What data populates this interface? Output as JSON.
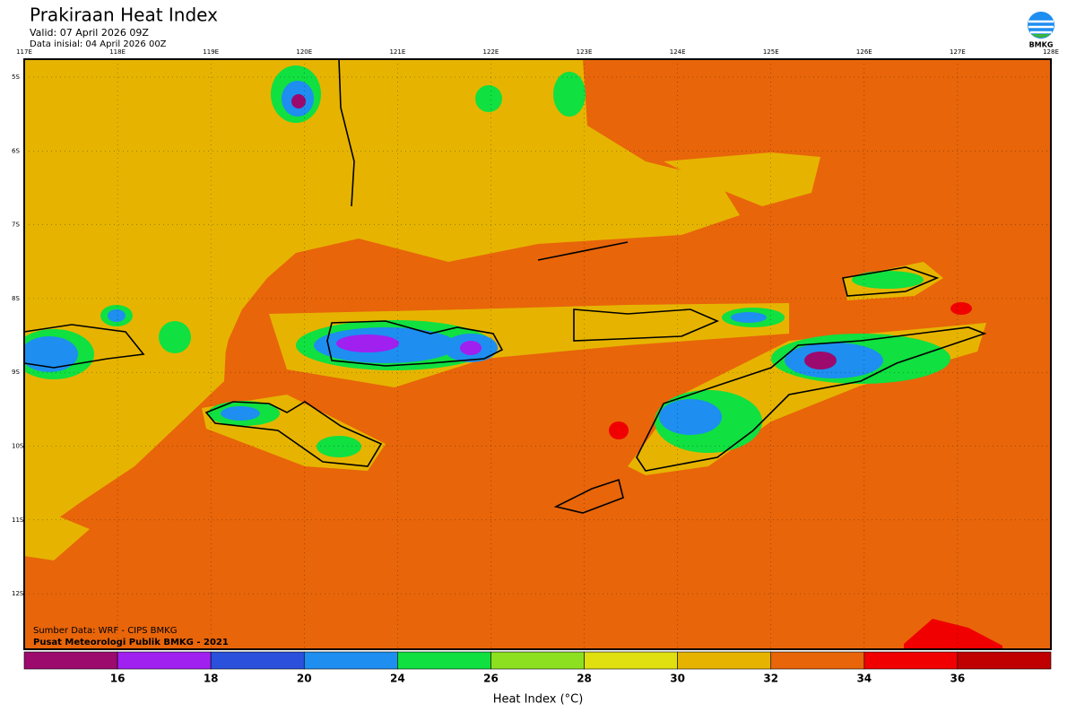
{
  "header": {
    "title": "Prakiraan Heat Index",
    "valid": "Valid: 07 April 2026 09Z",
    "init": "Data inisial: 04 April 2026 00Z",
    "logo": "BMKG"
  },
  "map": {
    "lon_labels": [
      "117E",
      "118E",
      "119E",
      "120E",
      "121E",
      "122E",
      "123E",
      "124E",
      "125E",
      "126E",
      "127E",
      "128E"
    ],
    "lat_labels": [
      "5S",
      "6S",
      "7S",
      "8S",
      "9S",
      "10S",
      "11S",
      "12S"
    ],
    "source": [
      "Sumber Data: WRF - CIPS BMKG",
      "Pusat Meteorologi Publik BMKG - 2021"
    ]
  },
  "legend": {
    "colors": [
      "#9c0a6e",
      "#a020f0",
      "#2a50dc",
      "#1e8ef0",
      "#10e040",
      "#8ce020",
      "#e0e010",
      "#e6b400",
      "#e8650a",
      "#f00000",
      "#c00000"
    ],
    "labels": [
      16,
      18,
      20,
      24,
      26,
      28,
      30,
      32,
      34,
      36
    ],
    "title": "Heat Index (°C)"
  }
}
